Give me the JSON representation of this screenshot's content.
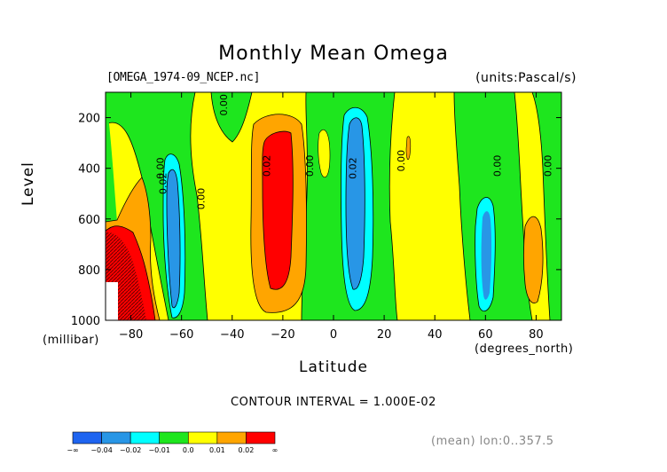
{
  "chart_data": {
    "type": "heatmap",
    "title": "Monthly Mean Omega",
    "file_label": "[OMEGA_1974-09_NCEP.nc]",
    "units_label": "(units:Pascal/s)",
    "ylabel": "Level",
    "yunit": "(millibar)",
    "xlabel": "Latitude",
    "xunit": "(degrees_north)",
    "xlim": [
      -90,
      90
    ],
    "ylim": [
      1000,
      100
    ],
    "x_ticks": [
      "-80",
      "-60",
      "-40",
      "-20",
      "0",
      "20",
      "40",
      "60",
      "80"
    ],
    "x_tick_values": [
      -80,
      -60,
      -40,
      -20,
      0,
      20,
      40,
      60,
      80
    ],
    "y_ticks": [
      "200",
      "400",
      "600",
      "800",
      "1000"
    ],
    "y_tick_values": [
      200,
      400,
      600,
      800,
      1000
    ],
    "contour_interval": "CONTOUR INTERVAL = 1.000E-02",
    "mean_note": "(mean) lon:0..357.5",
    "colorbar": {
      "labels": [
        "-∞",
        "-0.04",
        "-0.02",
        "-0.01",
        "0.0",
        "0.01",
        "0.02",
        "∞"
      ],
      "colors": [
        "#1e64f0",
        "#2896e6",
        "#00ffff",
        "#1ee61e",
        "#ffff00",
        "#ffa500",
        "#ff0000"
      ]
    },
    "contour_labels": [
      {
        "text": "0.00",
        "lat": -67,
        "lev": 400
      },
      {
        "text": "0.02",
        "lat": -66,
        "lev": 460
      },
      {
        "text": "0.00",
        "lat": -51,
        "lev": 520
      },
      {
        "text": "0.00",
        "lat": -42,
        "lev": 150
      },
      {
        "text": "0.02",
        "lat": -25,
        "lev": 390
      },
      {
        "text": "0.00",
        "lat": -8,
        "lev": 390
      },
      {
        "text": "0.02",
        "lat": 9,
        "lev": 400
      },
      {
        "text": "0.00",
        "lat": 28,
        "lev": 370
      },
      {
        "text": "0.00",
        "lat": 66,
        "lev": 390
      },
      {
        "text": "0.00",
        "lat": 86,
        "lev": 390
      }
    ],
    "regions": [
      {
        "color": "#1ee61e",
        "lat": -85,
        "lev_top": 100,
        "lev_bottom": 600,
        "note": "green band west edge"
      },
      {
        "color": "#ffa500",
        "lat": -81,
        "lev_top": 420,
        "lev_bottom": 650,
        "note": "orange"
      },
      {
        "color": "#ff0000",
        "lat": -79,
        "lev_top": 650,
        "lev_bottom": 1000,
        "note": "red, extreme"
      },
      {
        "color": "#2896e6",
        "lat": -63,
        "lev_top": 300,
        "lev_bottom": 980,
        "note": "blue descent"
      },
      {
        "color": "#ff0000",
        "lat": -25,
        "lev_top": 250,
        "lev_bottom": 870,
        "note": "red core"
      },
      {
        "color": "#2896e6",
        "lat": 10,
        "lev_top": 130,
        "lev_bottom": 850,
        "note": "blue core"
      },
      {
        "color": "#2896e6",
        "lat": 61,
        "lev_top": 550,
        "lev_bottom": 930,
        "note": "blue small"
      },
      {
        "color": "#ffa500",
        "lat": 82,
        "lev_top": 580,
        "lev_bottom": 880,
        "note": "orange small"
      }
    ]
  }
}
